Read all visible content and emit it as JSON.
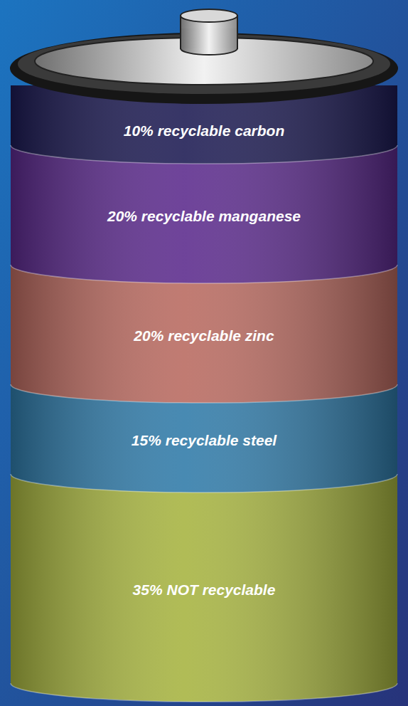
{
  "chart_data": {
    "type": "bar",
    "stacked": true,
    "data_labels": true,
    "tick_labels": false,
    "categories": [
      "10% recyclable carbon",
      "20% recyclable manganese",
      "20% recyclable zinc",
      "15% recyclable steel",
      "35% NOT recyclable"
    ],
    "values": [
      10,
      20,
      20,
      15,
      35
    ],
    "colors": [
      "#1c1a52",
      "#5b2a8c",
      "#b8695f",
      "#2f7aa8",
      "#a6b33f"
    ],
    "ylim": [
      0,
      100
    ]
  }
}
